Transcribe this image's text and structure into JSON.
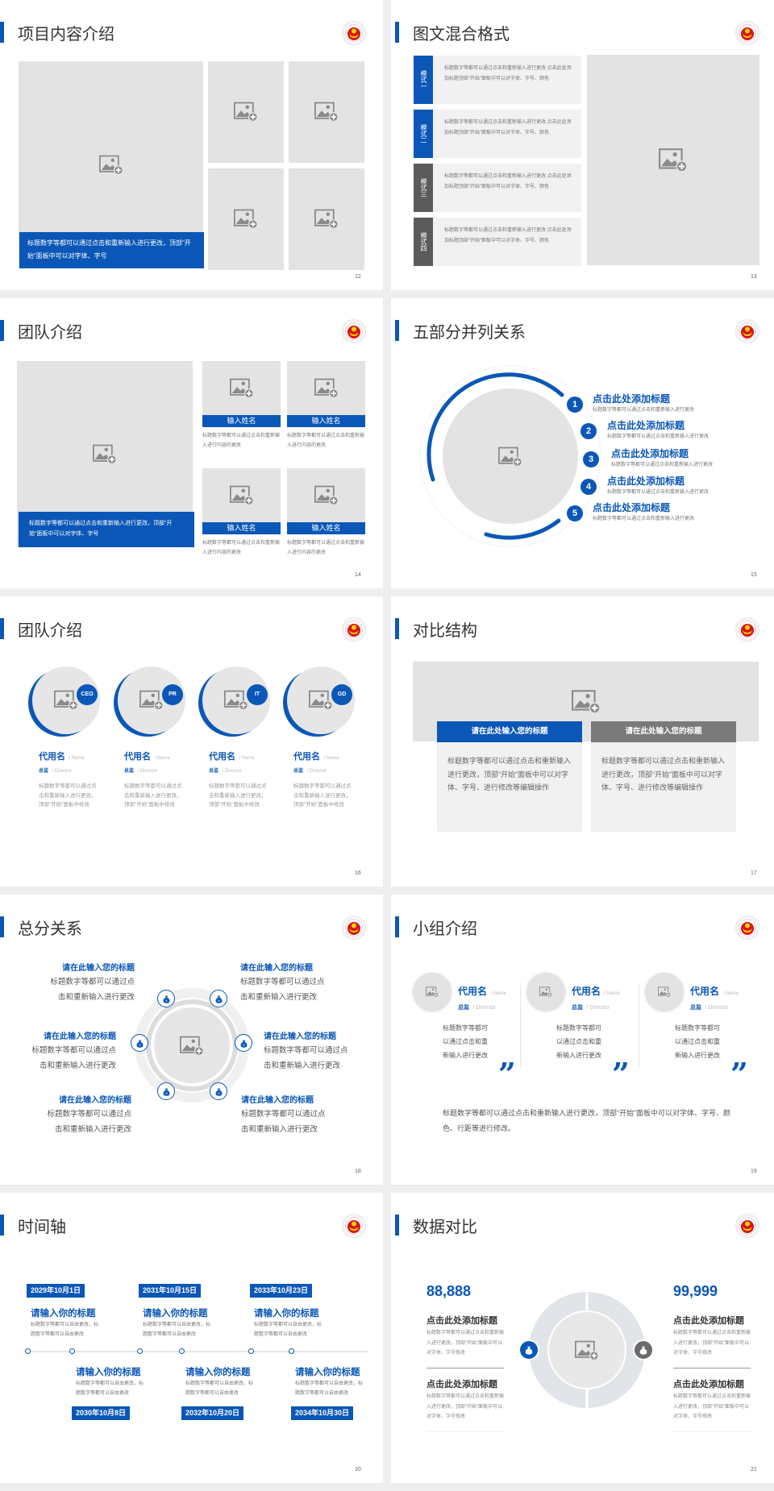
{
  "colors": {
    "accent": "#0b57b7",
    "tab_gray": "#5b5b5b",
    "placeholder": "#e3e3e3",
    "page_bg": "#eeeeee"
  },
  "icons": {
    "placeholder": "image-add-icon",
    "logo": "emblem-logo",
    "money": "money-bag-icon",
    "quote": "quote-icon"
  },
  "s12": {
    "title": "项目内容介绍",
    "page": "12",
    "caption": "标题数字等都可以通过点击和重新输入进行更改，顶部“开始”面板中可以对字体、字号"
  },
  "s13": {
    "title": "图文混合格式",
    "page": "13",
    "items": [
      {
        "label": "模式一",
        "text": "标题数字等都可以通过点击和重新输入进行更改 点击此处添加标题顶部“开始”面板中可以对字体、字号、颜色"
      },
      {
        "label": "模式二",
        "text": "标题数字等都可以通过点击和重新输入进行更改 点击此处添加标题顶部“开始”面板中可以对字体、字号、颜色"
      },
      {
        "label": "模式三",
        "text": "标题数字等都可以通过点击和重新输入进行更改 点击此处添加标题顶部“开始”面板中可以对字体、字号、颜色"
      },
      {
        "label": "模式四",
        "text": "标题数字等都可以通过点击和重新输入进行更改 点击此处添加标题顶部“开始”面板中可以对字体、字号、颜色"
      }
    ]
  },
  "s14": {
    "title": "团队介绍",
    "page": "14",
    "caption": "标题数字等都可以通过点击和重新输入进行更改，顶部“开始”面板中可以对字体、字号",
    "members": [
      {
        "name": "输入姓名",
        "text": "标题数字等都可以通过点击和重新输入进行内容的更改"
      },
      {
        "name": "输入姓名",
        "text": "标题数字等都可以通过点击和重新输入进行内容的更改"
      },
      {
        "name": "输入姓名",
        "text": "标题数字等都可以通过点击和重新输入进行内容的更改"
      },
      {
        "name": "输入姓名",
        "text": "标题数字等都可以通过点击和重新输入进行内容的更改"
      }
    ]
  },
  "s15": {
    "title": "五部分并列关系",
    "page": "15",
    "items": [
      {
        "num": "1",
        "title": "点击此处添加标题",
        "text": "标题数字等都可以通过点击和重新输入进行更改"
      },
      {
        "num": "2",
        "title": "点击此处添加标题",
        "text": "标题数字等都可以通过点击和重新输入进行更改"
      },
      {
        "num": "3",
        "title": "点击此处添加标题",
        "text": "标题数字等都可以通过点击和重新输入进行更改"
      },
      {
        "num": "4",
        "title": "点击此处添加标题",
        "text": "标题数字等都可以通过点击和重新输入进行更改"
      },
      {
        "num": "5",
        "title": "点击此处添加标题",
        "text": "标题数字等都可以通过点击和重新输入进行更改"
      }
    ]
  },
  "s16": {
    "title": "团队介绍",
    "page": "16",
    "members": [
      {
        "badge": "CEO",
        "name": "代用名",
        "name_en": "/ Name",
        "role": "总监",
        "role_en": "/ Director",
        "text": "标题数字等都可以通过点击和重新输入进行更改，顶部“开始”面板中修改"
      },
      {
        "badge": "PR",
        "name": "代用名",
        "name_en": "/ Name",
        "role": "总监",
        "role_en": "/ Director",
        "text": "标题数字等都可以通过点击和重新输入进行更改，顶部“开始”面板中修改"
      },
      {
        "badge": "IT",
        "name": "代用名",
        "name_en": "/ Name",
        "role": "总监",
        "role_en": "/ Director",
        "text": "标题数字等都可以通过点击和重新输入进行更改，顶部“开始”面板中修改"
      },
      {
        "badge": "GD",
        "name": "代用名",
        "name_en": "/ Name",
        "role": "总监",
        "role_en": "/ Director",
        "text": "标题数字等都可以通过点击和重新输入进行更改，顶部“开始”面板中修改"
      }
    ]
  },
  "s17": {
    "title": "对比结构",
    "page": "17",
    "cards": [
      {
        "title": "请在此处输入您的标题",
        "text": "标题数字等都可以通过点击和重新输入进行更改，顶部“开始”面板中可以对字体、字号、进行修改等编辑操作"
      },
      {
        "title": "请在此处输入您的标题",
        "text": "标题数字等都可以通过点击和重新输入进行更改，顶部“开始”面板中可以对字体、字号、进行修改等编辑操作"
      }
    ]
  },
  "s18": {
    "title": "总分关系",
    "page": "18",
    "items": [
      {
        "title": "请在此输入您的标题",
        "line1": "标题数字等都可以通过点",
        "line2": "击和重新输入进行更改"
      },
      {
        "title": "请在此输入您的标题",
        "line1": "标题数字等都可以通过点",
        "line2": "击和重新输入进行更改"
      },
      {
        "title": "请在此输入您的标题",
        "line1": "标题数字等都可以通过点",
        "line2": "击和重新输入进行更改"
      },
      {
        "title": "请在此输入您的标题",
        "line1": "标题数字等都可以通过点",
        "line2": "击和重新输入进行更改"
      },
      {
        "title": "请在此输入您的标题",
        "line1": "标题数字等都可以通过点",
        "line2": "击和重新输入进行更改"
      },
      {
        "title": "请在此输入您的标题",
        "line1": "标题数字等都可以通过点",
        "line2": "击和重新输入进行更改"
      }
    ]
  },
  "s19": {
    "title": "小组介绍",
    "page": "19",
    "quote": "”",
    "members": [
      {
        "name": "代用名",
        "name_en": "/ Name",
        "role": "总监",
        "role_en": "/ Director",
        "text": "标题数字等都可以通过点击和重新输入进行更改"
      },
      {
        "name": "代用名",
        "name_en": "/ Name",
        "role": "总监",
        "role_en": "/ Director",
        "text": "标题数字等都可以通过点击和重新输入进行更改"
      },
      {
        "name": "代用名",
        "name_en": "/ Name",
        "role": "总监",
        "role_en": "/ Director",
        "text": "标题数字等都可以通过点击和重新输入进行更改"
      }
    ],
    "summary": "标题数字等都可以通过点击和重新输入进行更改，顶部“开始”面板中可以对字体、字号、颜色、行距等进行修改。"
  },
  "s20": {
    "title": "时间轴",
    "page": "20",
    "events": [
      {
        "date": "2029年10月1日",
        "title": "请输入你的标题",
        "text": "标题数字等都可以自由更改，标题数字等都可以自由更改"
      },
      {
        "date": "2030年10月8日",
        "title": "请输入你的标题",
        "text": "标题数字等都可以自由更改，标题数字等都可以自由更改"
      },
      {
        "date": "2031年10月15日",
        "title": "请输入你的标题",
        "text": "标题数字等都可以自由更改，标题数字等都可以自由更改"
      },
      {
        "date": "2032年10月20日",
        "title": "请输入你的标题",
        "text": "标题数字等都可以自由更改，标题数字等都可以自由更改"
      },
      {
        "date": "2033年10月23日",
        "title": "请输入你的标题",
        "text": "标题数字等都可以自由更改，标题数字等都可以自由更改"
      },
      {
        "date": "2034年10月30日",
        "title": "请输入你的标题",
        "text": "标题数字等都可以自由更改，标题数字等都可以自由更改"
      }
    ]
  },
  "s21": {
    "title": "数据对比",
    "page": "21",
    "left": {
      "value": "88,888",
      "blocks": [
        {
          "title": "点击此处添加标题",
          "text": "标题数字等都可以通过点击和重新输入进行更改，顶部“开始”面板中可以对字体、字号修改"
        },
        {
          "title": "点击此处添加标题",
          "text": "标题数字等都可以通过点击和重新输入进行更改，顶部“开始”面板中可以对字体、字号修改"
        }
      ]
    },
    "right": {
      "value": "99,999",
      "blocks": [
        {
          "title": "点击此处添加标题",
          "text": "标题数字等都可以通过点击和重新输入进行更改，顶部“开始”面板中可以对字体、字号修改"
        },
        {
          "title": "点击此处添加标题",
          "text": "标题数字等都可以通过点击和重新输入进行更改，顶部“开始”面板中可以对字体、字号修改"
        }
      ]
    }
  }
}
